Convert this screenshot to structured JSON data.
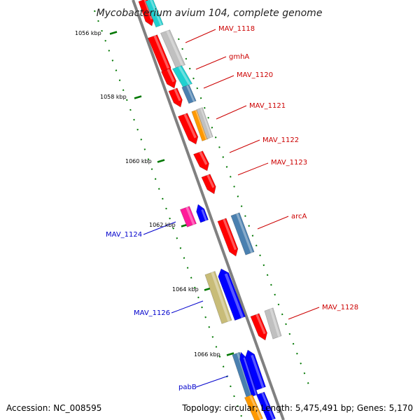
{
  "title": "Mycobacterium avium 104, complete genome",
  "footer": {
    "accession": "Accession: NC_008595",
    "topology": "Topology: circular; Length: 5,475,491 bp; Genes: 5,170"
  },
  "kbp_labels": [
    "1056 kbp",
    "1058 kbp",
    "1060 kbp",
    "1062 kbp",
    "1064 kbp",
    "1066 kbp"
  ],
  "gene_labels": {
    "forward": [
      "MAV_1118",
      "gmhA",
      "MAV_1120",
      "MAV_1121",
      "MAV_1122",
      "MAV_1123",
      "arcA",
      "MAV_1128"
    ],
    "reverse": [
      "MAV_1124",
      "MAV_1126",
      "pabB"
    ]
  },
  "colors": {
    "forward_label": "#cc0000",
    "reverse_label": "#0000cc",
    "backbone": "#808080",
    "tick": "#007700",
    "red": "#ff0000",
    "gray": "#c0c0c0",
    "cyan": "#20d0d0",
    "steel": "#4a80b0",
    "orange": "#ff9900",
    "magenta": "#ff1a99",
    "blue": "#0000ff",
    "khaki": "#c8bc78"
  }
}
